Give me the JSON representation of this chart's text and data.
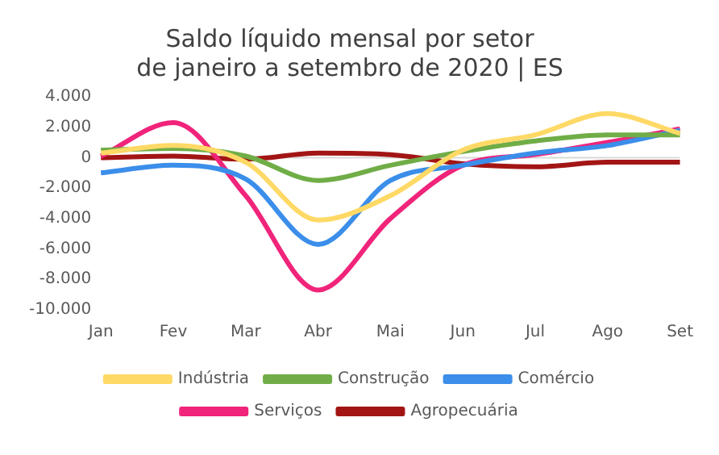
{
  "chart_data": {
    "type": "line",
    "title": "Saldo líquido mensal por setor\nde janeiro a setembro de 2020 | ES",
    "categories": [
      "Jan",
      "Fev",
      "Mar",
      "Abr",
      "Mai",
      "Jun",
      "Jul",
      "Ago",
      "Set"
    ],
    "series": [
      {
        "name": "Indústria",
        "color": "#ffd966",
        "values": [
          300,
          800,
          -300,
          -4100,
          -2500,
          500,
          1500,
          2900,
          1600
        ]
      },
      {
        "name": "Construção",
        "color": "#70ad47",
        "values": [
          500,
          600,
          100,
          -1500,
          -500,
          400,
          1100,
          1500,
          1500
        ]
      },
      {
        "name": "Comércio",
        "color": "#3b8eea",
        "values": [
          -1000,
          -500,
          -1400,
          -5700,
          -1500,
          -500,
          300,
          800,
          1800
        ]
      },
      {
        "name": "Serviços",
        "color": "#f0247a",
        "values": [
          100,
          2300,
          -2500,
          -8700,
          -4000,
          -500,
          200,
          1000,
          1900
        ]
      },
      {
        "name": "Agropecuária",
        "color": "#a31515",
        "values": [
          0,
          100,
          -100,
          300,
          200,
          -400,
          -600,
          -300,
          -300
        ]
      }
    ],
    "ylim": [
      -10000,
      4000
    ],
    "yticks": [
      {
        "value": -10000,
        "label": "-10.000"
      },
      {
        "value": -8000,
        "label": "-8.000"
      },
      {
        "value": -6000,
        "label": "-6.000"
      },
      {
        "value": -4000,
        "label": "-4.000"
      },
      {
        "value": -2000,
        "label": "-2.000"
      },
      0,
      {
        "value": 2000,
        "label": "2.000"
      },
      {
        "value": 4000,
        "label": "4.000"
      }
    ],
    "ref_lines": [
      {
        "axis": "y",
        "value": 0,
        "color": "#d9d9d9"
      }
    ],
    "grid": false,
    "legend": "bottom",
    "marker": "none",
    "line_style": "solid"
  }
}
